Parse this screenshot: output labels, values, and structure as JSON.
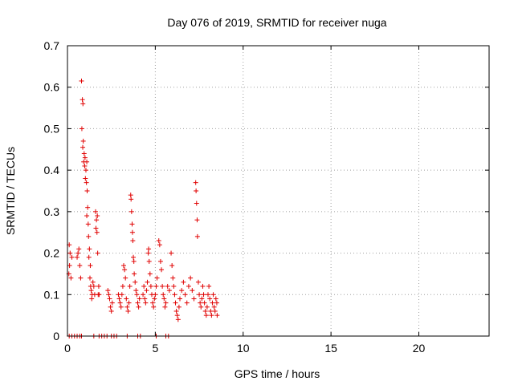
{
  "chart_data": {
    "type": "scatter",
    "title": "Day 076 of 2019, SRMTID for receiver nuga",
    "xlabel": "GPS time / hours",
    "ylabel": "SRMTID / TECUs",
    "xlim": [
      0,
      24
    ],
    "ylim": [
      0,
      0.7
    ],
    "xticks": [
      0,
      5,
      10,
      15,
      20
    ],
    "yticks": [
      0,
      0.1,
      0.2,
      0.3,
      0.4,
      0.5,
      0.6,
      0.7
    ],
    "grid": true,
    "marker_color": "#e00000",
    "series": [
      {
        "values": [
          [
            0.1,
            0.22
          ],
          [
            0.15,
            0.2
          ],
          [
            0.12,
            0.17
          ],
          [
            0.08,
            0.15
          ],
          [
            0.2,
            0.14
          ],
          [
            0.25,
            0.19
          ],
          [
            0.55,
            0.19
          ],
          [
            0.65,
            0.21
          ],
          [
            0.6,
            0.2
          ],
          [
            0.75,
            0.14
          ],
          [
            0.7,
            0.17
          ],
          [
            0.8,
            0.615
          ],
          [
            0.85,
            0.57
          ],
          [
            0.88,
            0.56
          ],
          [
            0.82,
            0.5
          ],
          [
            0.9,
            0.47
          ],
          [
            0.87,
            0.455
          ],
          [
            0.95,
            0.44
          ],
          [
            1.0,
            0.43
          ],
          [
            0.92,
            0.42
          ],
          [
            0.98,
            0.41
          ],
          [
            1.05,
            0.4
          ],
          [
            1.1,
            0.42
          ],
          [
            1.02,
            0.38
          ],
          [
            1.08,
            0.37
          ],
          [
            1.12,
            0.35
          ],
          [
            1.15,
            0.31
          ],
          [
            1.1,
            0.29
          ],
          [
            1.18,
            0.27
          ],
          [
            1.2,
            0.24
          ],
          [
            1.25,
            0.21
          ],
          [
            1.22,
            0.19
          ],
          [
            1.3,
            0.17
          ],
          [
            1.28,
            0.14
          ],
          [
            1.32,
            0.12
          ],
          [
            1.35,
            0.11
          ],
          [
            1.4,
            0.1
          ],
          [
            1.38,
            0.09
          ],
          [
            1.45,
            0.13
          ],
          [
            1.5,
            0.12
          ],
          [
            1.55,
            0.1
          ],
          [
            1.6,
            0.3
          ],
          [
            1.65,
            0.28
          ],
          [
            1.62,
            0.26
          ],
          [
            1.7,
            0.29
          ],
          [
            1.68,
            0.25
          ],
          [
            1.72,
            0.2
          ],
          [
            1.75,
            0.1
          ],
          [
            1.8,
            0.1
          ],
          [
            1.78,
            0.12
          ],
          [
            2.3,
            0.11
          ],
          [
            2.35,
            0.1
          ],
          [
            2.4,
            0.09
          ],
          [
            2.45,
            0.07
          ],
          [
            2.5,
            0.06
          ],
          [
            2.55,
            0.08
          ],
          [
            2.9,
            0.1
          ],
          [
            2.95,
            0.09
          ],
          [
            3.0,
            0.08
          ],
          [
            3.05,
            0.07
          ],
          [
            3.1,
            0.1
          ],
          [
            3.15,
            0.12
          ],
          [
            3.2,
            0.17
          ],
          [
            3.25,
            0.16
          ],
          [
            3.3,
            0.14
          ],
          [
            3.35,
            0.09
          ],
          [
            3.4,
            0.07
          ],
          [
            3.45,
            0.06
          ],
          [
            3.5,
            0.08
          ],
          [
            3.55,
            0.12
          ],
          [
            3.6,
            0.34
          ],
          [
            3.62,
            0.33
          ],
          [
            3.65,
            0.3
          ],
          [
            3.68,
            0.27
          ],
          [
            3.7,
            0.25
          ],
          [
            3.72,
            0.23
          ],
          [
            3.75,
            0.19
          ],
          [
            3.78,
            0.18
          ],
          [
            3.8,
            0.15
          ],
          [
            3.85,
            0.13
          ],
          [
            3.9,
            0.11
          ],
          [
            3.95,
            0.1
          ],
          [
            4.0,
            0.08
          ],
          [
            4.05,
            0.07
          ],
          [
            4.1,
            0.09
          ],
          [
            4.3,
            0.1
          ],
          [
            4.35,
            0.12
          ],
          [
            4.4,
            0.09
          ],
          [
            4.45,
            0.08
          ],
          [
            4.5,
            0.11
          ],
          [
            4.55,
            0.13
          ],
          [
            4.6,
            0.2
          ],
          [
            4.62,
            0.21
          ],
          [
            4.65,
            0.18
          ],
          [
            4.7,
            0.15
          ],
          [
            4.75,
            0.12
          ],
          [
            4.8,
            0.1
          ],
          [
            4.85,
            0.08
          ],
          [
            4.9,
            0.07
          ],
          [
            4.95,
            0.09
          ],
          [
            5.0,
            0.1
          ],
          [
            5.05,
            0.12
          ],
          [
            5.1,
            0.14
          ],
          [
            5.2,
            0.23
          ],
          [
            5.25,
            0.22
          ],
          [
            5.3,
            0.18
          ],
          [
            5.35,
            0.16
          ],
          [
            5.4,
            0.12
          ],
          [
            5.45,
            0.1
          ],
          [
            5.5,
            0.09
          ],
          [
            5.55,
            0.07
          ],
          [
            5.6,
            0.08
          ],
          [
            5.7,
            0.12
          ],
          [
            5.8,
            0.11
          ],
          [
            5.9,
            0.2
          ],
          [
            5.95,
            0.17
          ],
          [
            6.0,
            0.14
          ],
          [
            6.05,
            0.12
          ],
          [
            6.1,
            0.1
          ],
          [
            6.15,
            0.08
          ],
          [
            6.2,
            0.06
          ],
          [
            6.25,
            0.05
          ],
          [
            6.3,
            0.04
          ],
          [
            6.35,
            0.07
          ],
          [
            6.4,
            0.09
          ],
          [
            6.5,
            0.11
          ],
          [
            6.6,
            0.13
          ],
          [
            6.7,
            0.1
          ],
          [
            6.8,
            0.08
          ],
          [
            6.9,
            0.12
          ],
          [
            7.0,
            0.14
          ],
          [
            7.1,
            0.11
          ],
          [
            7.2,
            0.09
          ],
          [
            7.3,
            0.37
          ],
          [
            7.32,
            0.35
          ],
          [
            7.35,
            0.32
          ],
          [
            7.38,
            0.28
          ],
          [
            7.4,
            0.24
          ],
          [
            7.45,
            0.13
          ],
          [
            7.5,
            0.1
          ],
          [
            7.55,
            0.08
          ],
          [
            7.6,
            0.07
          ],
          [
            7.65,
            0.09
          ],
          [
            7.7,
            0.12
          ],
          [
            7.75,
            0.1
          ],
          [
            7.8,
            0.08
          ],
          [
            7.85,
            0.06
          ],
          [
            7.9,
            0.05
          ],
          [
            7.95,
            0.07
          ],
          [
            8.0,
            0.1
          ],
          [
            8.05,
            0.12
          ],
          [
            8.1,
            0.09
          ],
          [
            8.15,
            0.06
          ],
          [
            8.2,
            0.05
          ],
          [
            8.25,
            0.08
          ],
          [
            8.3,
            0.1
          ],
          [
            8.35,
            0.07
          ],
          [
            8.4,
            0.06
          ],
          [
            8.45,
            0.09
          ],
          [
            8.5,
            0.08
          ],
          [
            8.52,
            0.05
          ]
        ]
      },
      {
        "values": [
          [
            0.1,
            0
          ],
          [
            0.25,
            0
          ],
          [
            0.4,
            0
          ],
          [
            0.55,
            0
          ],
          [
            0.7,
            0
          ],
          [
            0.8,
            0
          ],
          [
            1.5,
            0
          ],
          [
            1.8,
            0
          ],
          [
            1.95,
            0
          ],
          [
            2.1,
            0
          ],
          [
            2.25,
            0
          ],
          [
            2.5,
            0
          ],
          [
            2.65,
            0
          ],
          [
            2.8,
            0
          ],
          [
            3.4,
            0
          ],
          [
            4.0,
            0
          ],
          [
            4.15,
            0
          ],
          [
            5.05,
            0
          ],
          [
            5.6,
            0
          ],
          [
            5.75,
            0
          ]
        ]
      }
    ]
  }
}
